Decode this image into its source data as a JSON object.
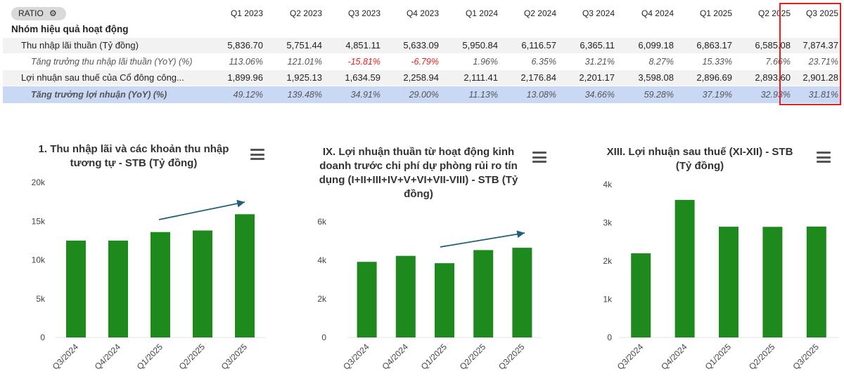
{
  "table": {
    "ratio_label": "RATIO",
    "columns": [
      "Q1 2023",
      "Q2 2023",
      "Q3 2023",
      "Q4 2023",
      "Q1 2024",
      "Q2 2024",
      "Q3 2024",
      "Q4 2024",
      "Q1 2025",
      "Q2 2025",
      "Q3 2025"
    ],
    "group_label": "Nhóm hiệu quả hoạt động",
    "rows": [
      {
        "label": "Thu nhập lãi thuần (Tỷ đồng)",
        "values": [
          "5,836.70",
          "5,751.44",
          "4,851.11",
          "5,633.09",
          "5,950.84",
          "6,116.57",
          "6,365.11",
          "6,099.18",
          "6,863.17",
          "6,585.08",
          "7,874.37"
        ]
      },
      {
        "label": "Tăng trưởng thu nhập lãi thuần (YoY) (%)",
        "values": [
          "113.06%",
          "121.01%",
          "-15.81%",
          "-6.79%",
          "1.96%",
          "6.35%",
          "31.21%",
          "8.27%",
          "15.33%",
          "7.66%",
          "23.71%"
        ]
      },
      {
        "label": "Lợi nhuận sau thuế của Cổ đông công...",
        "values": [
          "1,899.96",
          "1,925.13",
          "1,634.59",
          "2,258.94",
          "2,111.41",
          "2,176.84",
          "2,201.17",
          "3,598.08",
          "2,896.69",
          "2,893.60",
          "2,901.28"
        ]
      },
      {
        "label": "Tăng trưởng lợi nhuận (YoY) (%)",
        "values": [
          "49.12%",
          "139.48%",
          "34.91%",
          "29.00%",
          "11.13%",
          "13.08%",
          "34.66%",
          "59.28%",
          "37.19%",
          "32.93%",
          "31.81%"
        ]
      }
    ]
  },
  "colors": {
    "bar": "#1e8a1e",
    "arrow": "#1f5f7a",
    "highlight": "#e02020",
    "row_highlight": "#c8d8f5"
  },
  "chart_data": [
    {
      "type": "bar",
      "title": "1. Thu nhập lãi và các khoản thu nhập tương tự - STB (Tỷ đồng)",
      "categories": [
        "Q3/2024",
        "Q4/2024",
        "Q1/2025",
        "Q2/2025",
        "Q3/2025"
      ],
      "values": [
        12500,
        12500,
        13600,
        13800,
        15900
      ],
      "yticks": [
        "0",
        "5k",
        "10k",
        "15k",
        "20k"
      ],
      "ylim": [
        0,
        20000
      ],
      "grid": false,
      "trend_arrow": true
    },
    {
      "type": "bar",
      "title": "IX. Lợi nhuận thuần từ hoạt động kinh doanh trước chi phí dự phòng rủi ro tín dụng (I+II+III+IV+V+VI+VII-VIII) - STB (Tỷ đồng)",
      "categories": [
        "Q3/2024",
        "Q4/2024",
        "Q1/2025",
        "Q2/2025",
        "Q3/2025"
      ],
      "values": [
        3920,
        4230,
        3850,
        4530,
        4650
      ],
      "yticks": [
        "0",
        "2k",
        "4k",
        "6k"
      ],
      "ylim": [
        0,
        6000
      ],
      "grid": false,
      "trend_arrow": true
    },
    {
      "type": "bar",
      "title": "XIII. Lợi nhuận sau thuế (XI-XII) - STB (Tỷ đồng)",
      "categories": [
        "Q3/2024",
        "Q4/2024",
        "Q1/2025",
        "Q2/2025",
        "Q3/2025"
      ],
      "values": [
        2201.17,
        3598.08,
        2896.69,
        2893.6,
        2901.28
      ],
      "yticks": [
        "0",
        "1k",
        "2k",
        "3k",
        "4k"
      ],
      "ylim": [
        0,
        4000
      ],
      "grid": false,
      "trend_arrow": false
    }
  ]
}
